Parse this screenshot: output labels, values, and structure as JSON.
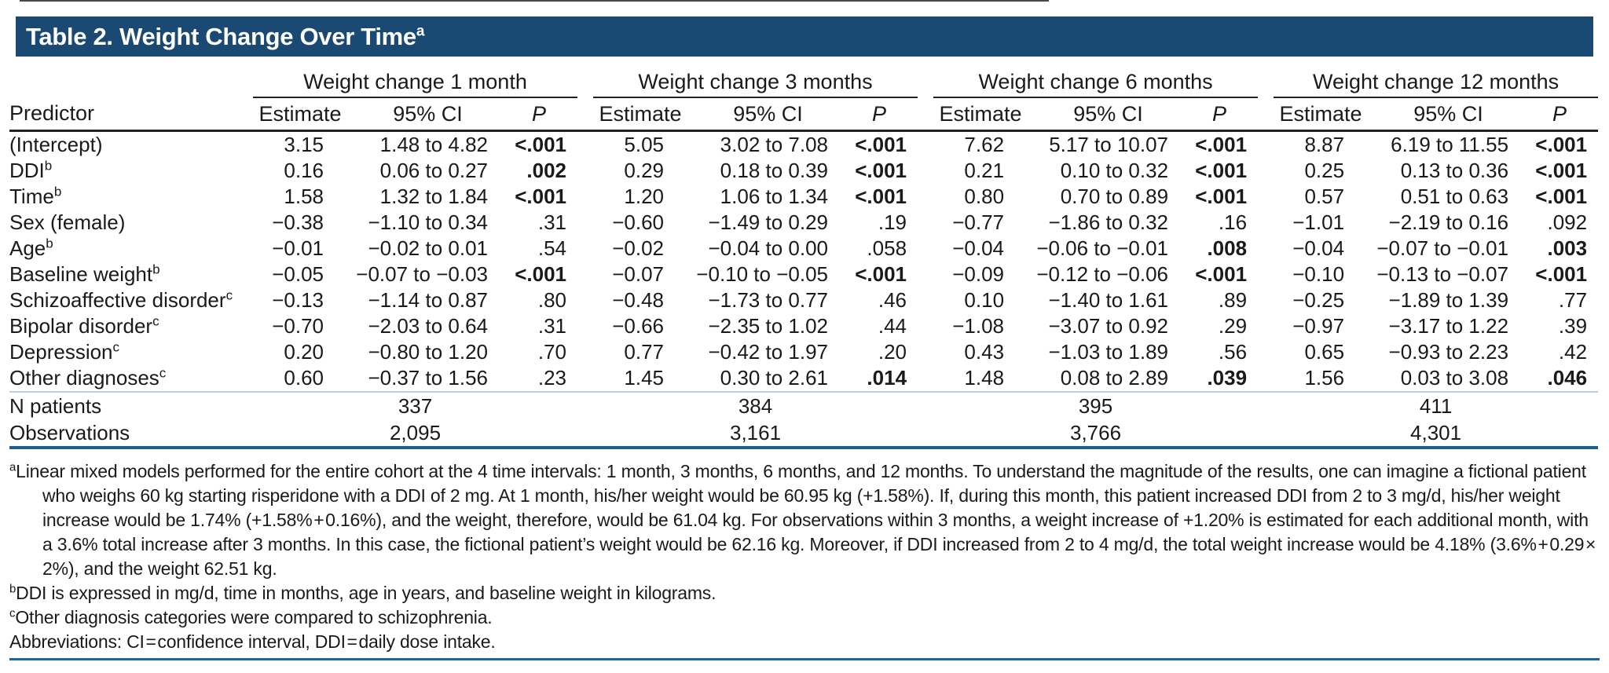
{
  "title": {
    "text": "Table 2. Weight Change Over Time",
    "sup": "a"
  },
  "groups": [
    "Weight change 1 month",
    "Weight change 3 months",
    "Weight change 6 months",
    "Weight change 12 months"
  ],
  "columns": {
    "predictor": "Predictor",
    "estimate": "Estimate",
    "ci": "95% CI",
    "p": "P"
  },
  "rows": [
    {
      "predictor": "(Intercept)",
      "sup": "",
      "m1": {
        "est": "3.15",
        "ci": "1.48 to 4.82",
        "p": "<.001",
        "bold": true
      },
      "m3": {
        "est": "5.05",
        "ci": "3.02 to 7.08",
        "p": "<.001",
        "bold": true
      },
      "m6": {
        "est": "7.62",
        "ci": "5.17 to 10.07",
        "p": "<.001",
        "bold": true
      },
      "m12": {
        "est": "8.87",
        "ci": "6.19 to 11.55",
        "p": "<.001",
        "bold": true
      }
    },
    {
      "predictor": "DDI",
      "sup": "b",
      "m1": {
        "est": "0.16",
        "ci": "0.06 to 0.27",
        "p": ".002",
        "bold": true
      },
      "m3": {
        "est": "0.29",
        "ci": "0.18 to 0.39",
        "p": "<.001",
        "bold": true
      },
      "m6": {
        "est": "0.21",
        "ci": "0.10 to 0.32",
        "p": "<.001",
        "bold": true
      },
      "m12": {
        "est": "0.25",
        "ci": "0.13 to 0.36",
        "p": "<.001",
        "bold": true
      }
    },
    {
      "predictor": "Time",
      "sup": "b",
      "m1": {
        "est": "1.58",
        "ci": "1.32 to 1.84",
        "p": "<.001",
        "bold": true
      },
      "m3": {
        "est": "1.20",
        "ci": "1.06 to 1.34",
        "p": "<.001",
        "bold": true
      },
      "m6": {
        "est": "0.80",
        "ci": "0.70 to 0.89",
        "p": "<.001",
        "bold": true
      },
      "m12": {
        "est": "0.57",
        "ci": "0.51 to 0.63",
        "p": "<.001",
        "bold": true
      }
    },
    {
      "predictor": "Sex (female)",
      "sup": "",
      "m1": {
        "est": "−0.38",
        "ci": "−1.10 to 0.34",
        "p": ".31",
        "bold": false
      },
      "m3": {
        "est": "−0.60",
        "ci": "−1.49 to 0.29",
        "p": ".19",
        "bold": false
      },
      "m6": {
        "est": "−0.77",
        "ci": "−1.86 to 0.32",
        "p": ".16",
        "bold": false
      },
      "m12": {
        "est": "−1.01",
        "ci": "−2.19 to 0.16",
        "p": ".092",
        "bold": false
      }
    },
    {
      "predictor": "Age",
      "sup": "b",
      "m1": {
        "est": "−0.01",
        "ci": "−0.02 to 0.01",
        "p": ".54",
        "bold": false
      },
      "m3": {
        "est": "−0.02",
        "ci": "−0.04 to 0.00",
        "p": ".058",
        "bold": false
      },
      "m6": {
        "est": "−0.04",
        "ci": "−0.06 to −0.01",
        "p": ".008",
        "bold": true
      },
      "m12": {
        "est": "−0.04",
        "ci": "−0.07 to −0.01",
        "p": ".003",
        "bold": true
      }
    },
    {
      "predictor": "Baseline weight",
      "sup": "b",
      "m1": {
        "est": "−0.05",
        "ci": "−0.07 to −0.03",
        "p": "<.001",
        "bold": true
      },
      "m3": {
        "est": "−0.07",
        "ci": "−0.10 to −0.05",
        "p": "<.001",
        "bold": true
      },
      "m6": {
        "est": "−0.09",
        "ci": "−0.12 to −0.06",
        "p": "<.001",
        "bold": true
      },
      "m12": {
        "est": "−0.10",
        "ci": "−0.13 to −0.07",
        "p": "<.001",
        "bold": true
      }
    },
    {
      "predictor": "Schizoaffective disorder",
      "sup": "c",
      "m1": {
        "est": "−0.13",
        "ci": "−1.14 to 0.87",
        "p": ".80",
        "bold": false
      },
      "m3": {
        "est": "−0.48",
        "ci": "−1.73 to 0.77",
        "p": ".46",
        "bold": false
      },
      "m6": {
        "est": "0.10",
        "ci": "−1.40 to 1.61",
        "p": ".89",
        "bold": false
      },
      "m12": {
        "est": "−0.25",
        "ci": "−1.89 to 1.39",
        "p": ".77",
        "bold": false
      }
    },
    {
      "predictor": "Bipolar disorder",
      "sup": "c",
      "m1": {
        "est": "−0.70",
        "ci": "−2.03 to 0.64",
        "p": ".31",
        "bold": false
      },
      "m3": {
        "est": "−0.66",
        "ci": "−2.35 to 1.02",
        "p": ".44",
        "bold": false
      },
      "m6": {
        "est": "−1.08",
        "ci": "−3.07 to 0.92",
        "p": ".29",
        "bold": false
      },
      "m12": {
        "est": "−0.97",
        "ci": "−3.17 to 1.22",
        "p": ".39",
        "bold": false
      }
    },
    {
      "predictor": "Depression",
      "sup": "c",
      "m1": {
        "est": "0.20",
        "ci": "−0.80 to 1.20",
        "p": ".70",
        "bold": false
      },
      "m3": {
        "est": "0.77",
        "ci": "−0.42 to 1.97",
        "p": ".20",
        "bold": false
      },
      "m6": {
        "est": "0.43",
        "ci": "−1.03 to 1.89",
        "p": ".56",
        "bold": false
      },
      "m12": {
        "est": "0.65",
        "ci": "−0.93 to 2.23",
        "p": ".42",
        "bold": false
      }
    },
    {
      "predictor": "Other diagnoses",
      "sup": "c",
      "m1": {
        "est": "0.60",
        "ci": "−0.37 to 1.56",
        "p": ".23",
        "bold": false
      },
      "m3": {
        "est": "1.45",
        "ci": "0.30 to 2.61",
        "p": ".014",
        "bold": true
      },
      "m6": {
        "est": "1.48",
        "ci": "0.08 to 2.89",
        "p": ".039",
        "bold": true
      },
      "m12": {
        "est": "1.56",
        "ci": "0.03 to 3.08",
        "p": ".046",
        "bold": true
      }
    }
  ],
  "n_patients": {
    "label": "N patients",
    "values": [
      "337",
      "384",
      "395",
      "411"
    ]
  },
  "observations": {
    "label": "Observations",
    "values": [
      "2,095",
      "3,161",
      "3,766",
      "4,301"
    ]
  },
  "footnotes": [
    {
      "marker": "a",
      "text": "Linear mixed models performed for the entire cohort at the 4 time intervals: 1 month, 3 months, 6 months, and 12 months. To understand the magnitude of the results, one can imagine a fictional patient who weighs 60 kg starting risperidone with a DDI of 2 mg. At 1 month, his/her weight would be 60.95 kg (+1.58%). If, during this month, this patient increased DDI from 2 to 3 mg/d, his/her weight increase would be 1.74% (+1.58% + 0.16%), and the weight, therefore, would be 61.04 kg. For observations within 3 months, a weight increase of +1.20% is estimated for each additional month, with a 3.6% total increase after 3 months. In this case, the fictional patient’s weight would be 62.16 kg. Moreover, if DDI increased from 2 to 4 mg/d, the total weight increase would be 4.18% (3.6% + 0.29 × 2%), and the weight 62.51 kg."
    },
    {
      "marker": "b",
      "text": "DDI is expressed in mg/d, time in months, age in years, and baseline weight in kilograms."
    },
    {
      "marker": "c",
      "text": "Other diagnosis categories were compared to schizophrenia."
    },
    {
      "marker": "",
      "text": "Abbreviations: CI = confidence interval, DDI = daily dose intake."
    }
  ],
  "colors": {
    "title_bar": "#1a4a74",
    "rule_dark": "#222222",
    "rule_blue": "#1b5f8f",
    "rule_light_blue": "#b9cfe2"
  }
}
